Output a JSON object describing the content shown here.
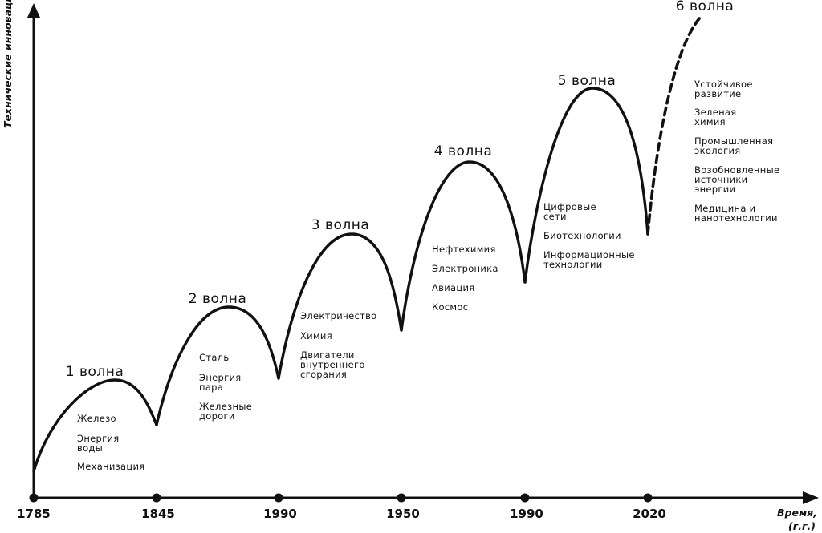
{
  "axes": {
    "y_title": "Технические инновации",
    "x_title_line1": "Время,",
    "x_title_line2": "(г.г.)",
    "ticks": [
      "1785",
      "1845",
      "1990",
      "1950",
      "1990",
      "2020"
    ]
  },
  "waves": [
    {
      "label": "1 волна",
      "tech": [
        [
          "Железо"
        ],
        [
          "Энергия",
          "воды"
        ],
        [
          "Механизация"
        ]
      ]
    },
    {
      "label": "2 волна",
      "tech": [
        [
          "Сталь"
        ],
        [
          "Энергия",
          "пара"
        ],
        [
          "Железные",
          "дороги"
        ]
      ]
    },
    {
      "label": "3 волна",
      "tech": [
        [
          "Электричество"
        ],
        [
          "Химия"
        ],
        [
          "Двигатели",
          "внутреннего",
          "сгорания"
        ]
      ]
    },
    {
      "label": "4 волна",
      "tech": [
        [
          "Нефтехимия"
        ],
        [
          "Электроника"
        ],
        [
          "Авиация"
        ],
        [
          "Космос"
        ]
      ]
    },
    {
      "label": "5 волна",
      "tech": [
        [
          "Цифровые",
          "сети"
        ],
        [
          "Биотехнологии"
        ],
        [
          "Информационные",
          "технологии"
        ]
      ]
    },
    {
      "label": "6 волна",
      "tech": [
        [
          "Устойчивое",
          "развитие"
        ],
        [
          "Зеленая",
          "химия"
        ],
        [
          "Промышленная",
          "экология"
        ],
        [
          "Возобновленные",
          "источники",
          "энергии"
        ],
        [
          "Медицина и",
          "нанотехнологии"
        ]
      ]
    }
  ],
  "style": {
    "line_color": "#111111"
  }
}
